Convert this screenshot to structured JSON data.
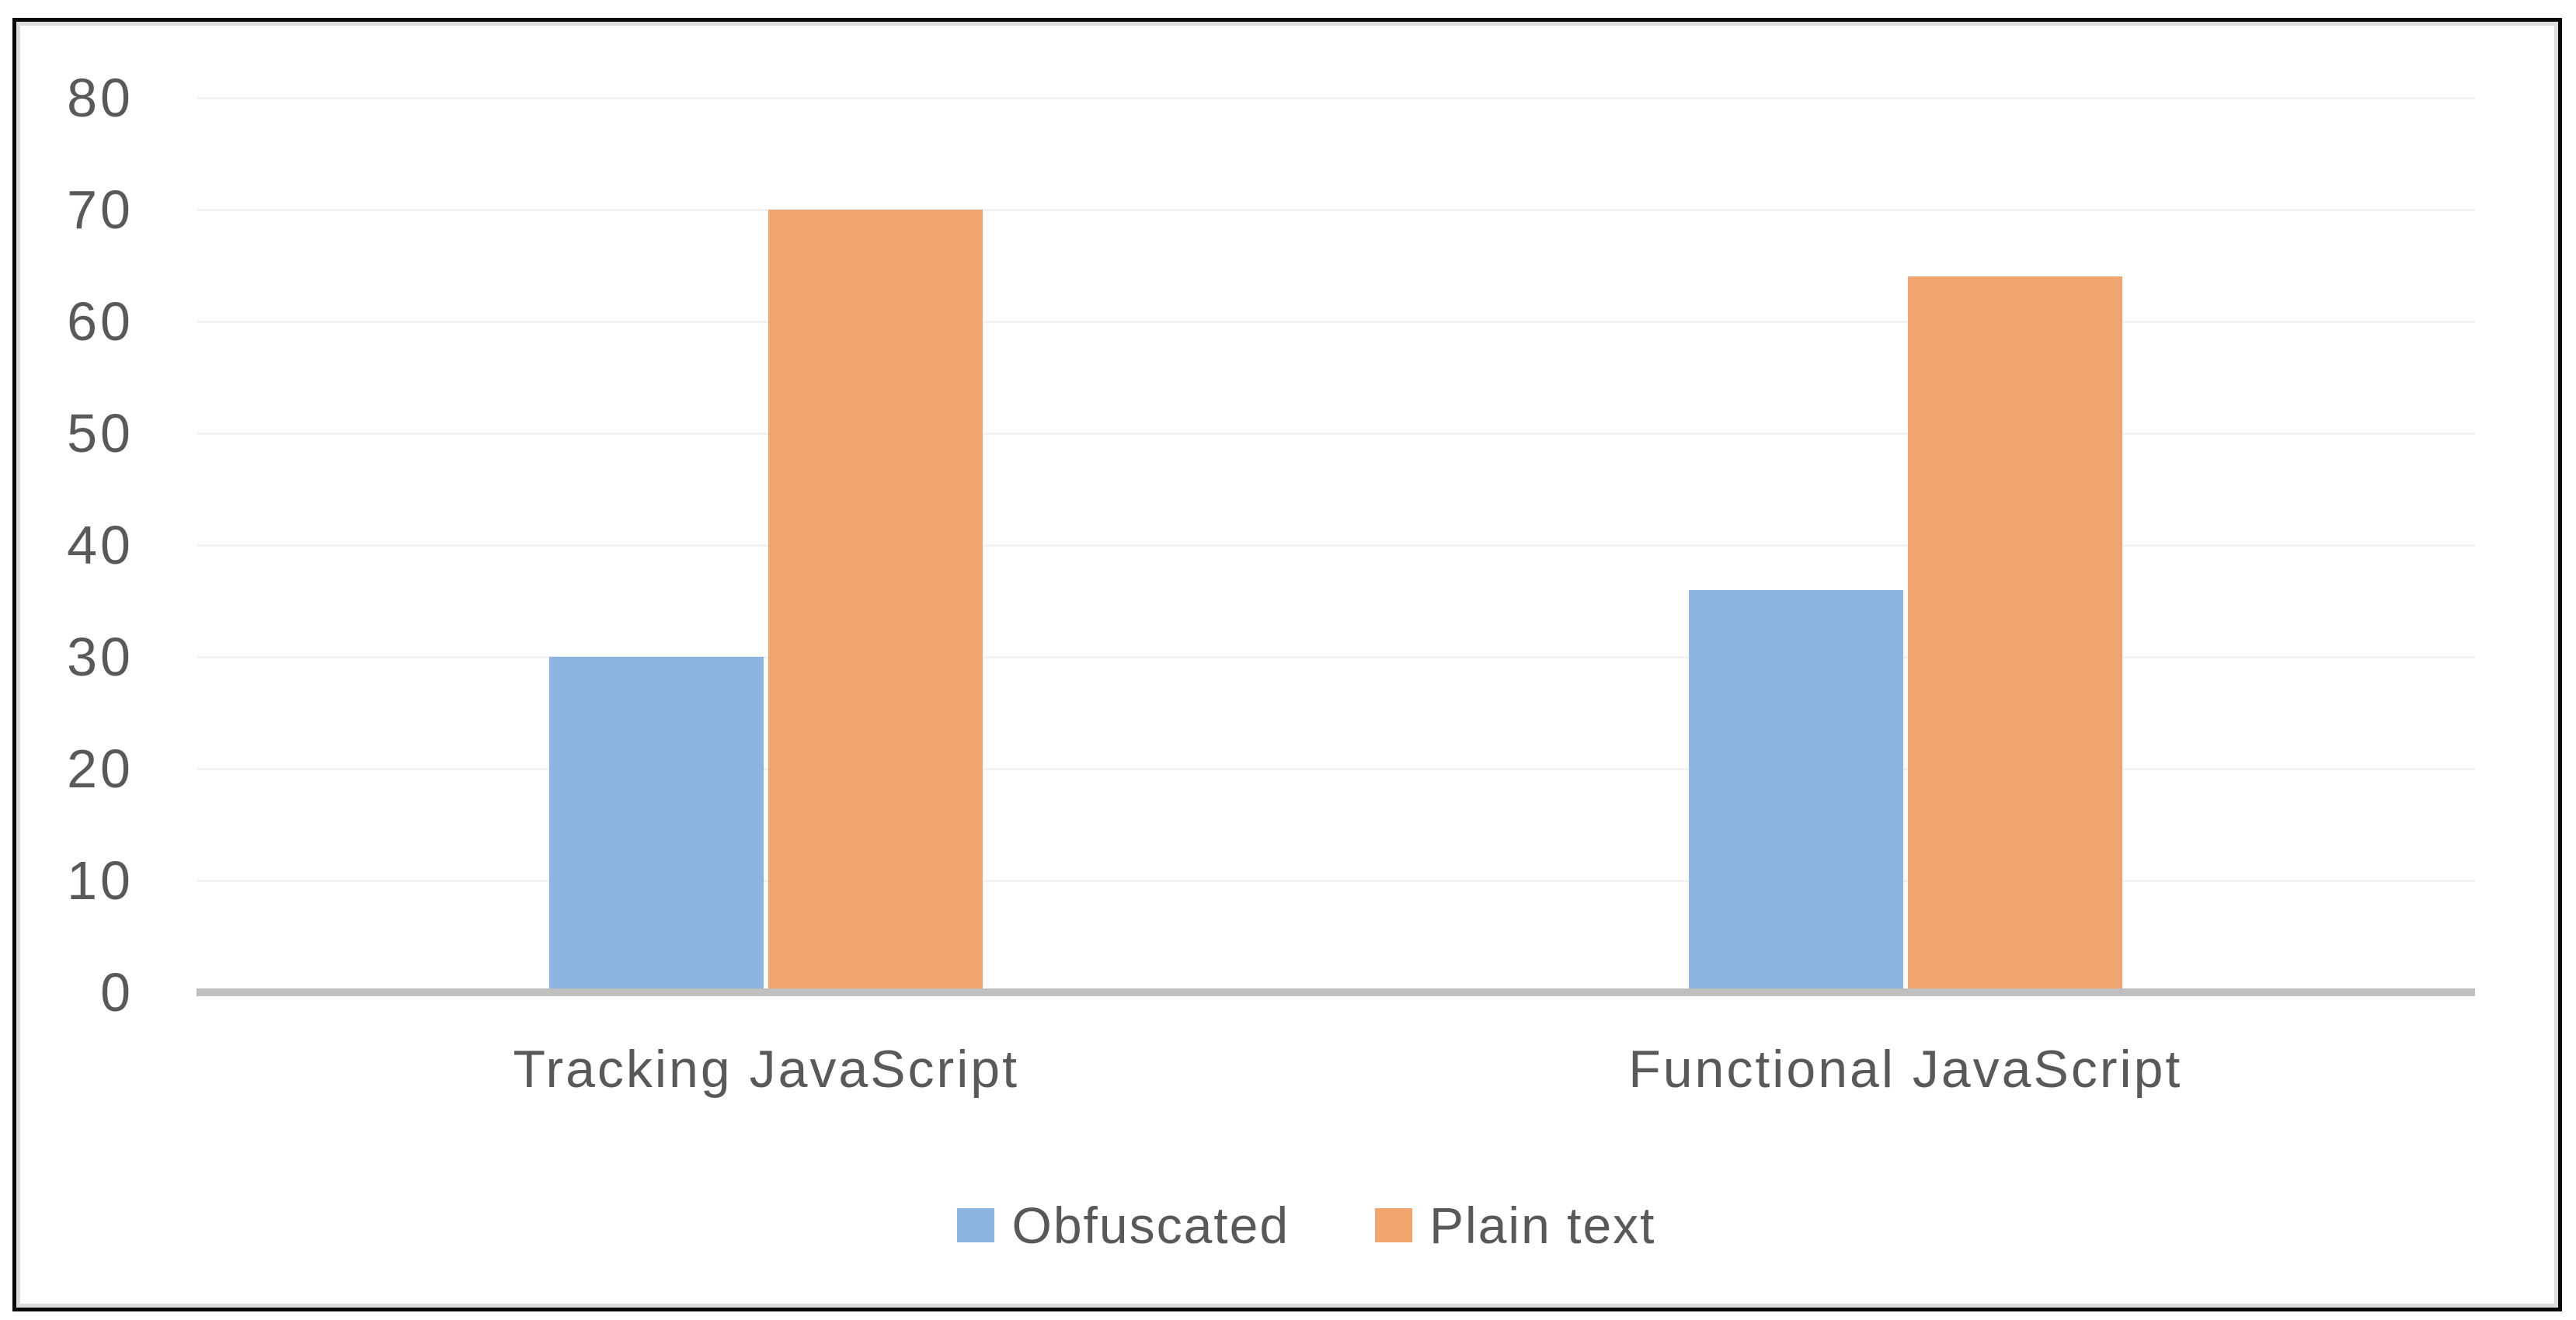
{
  "chart_data": {
    "type": "bar",
    "title": "",
    "xlabel": "",
    "ylabel": "",
    "categories": [
      "Tracking JavaScript",
      "Functional JavaScript"
    ],
    "series": [
      {
        "name": "Obfuscated",
        "color": "#8CB5E2",
        "values": [
          30,
          36
        ]
      },
      {
        "name": "Plain text",
        "color": "#F0A46E",
        "values": [
          70,
          64
        ]
      }
    ],
    "ylim": [
      0,
      80
    ],
    "ytick_step": 10,
    "yticks": [
      0,
      10,
      20,
      30,
      40,
      50,
      60,
      70,
      80
    ],
    "grid": true,
    "legend_position": "bottom"
  },
  "colors": {
    "series_obfuscated": "#8CB5E2",
    "series_plain_text": "#F0A46E",
    "axis_line": "#BFBFBF",
    "gridline": "#F2F2F2",
    "text": "#595959",
    "frame_border": "#0A0A0A",
    "background": "#FFFFFF"
  }
}
